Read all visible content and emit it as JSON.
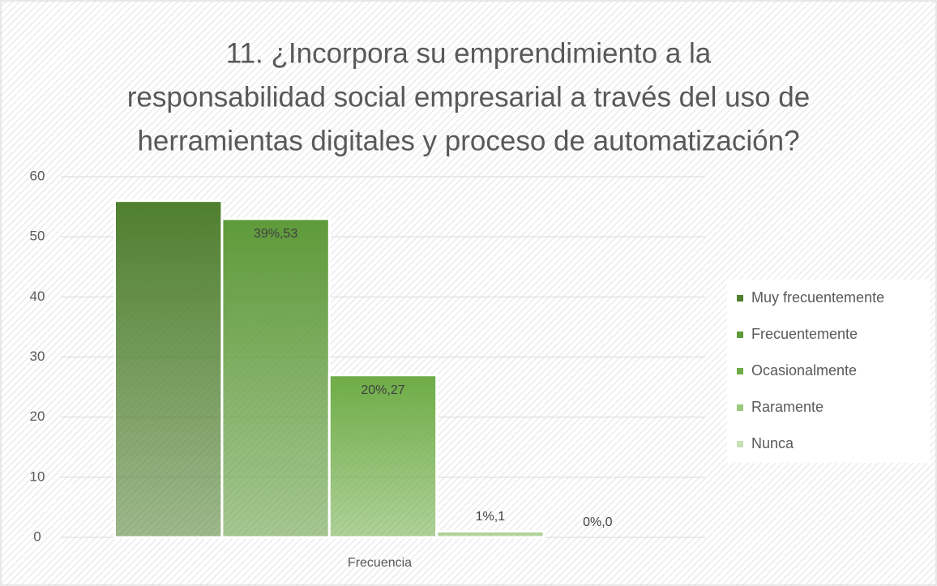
{
  "chart_data": {
    "type": "bar",
    "title": [
      "11. ¿Incorpora su emprendimiento a la",
      "responsabilidad social empresarial a través del uso de",
      "herramientas digitales y proceso de automatización?"
    ],
    "categories": [
      "Frecuencia"
    ],
    "series": [
      {
        "name": "Muy frecuentemente",
        "color": "#4f7f2f",
        "values": [
          56
        ]
      },
      {
        "name": "Frecuentemente",
        "color": "#5e9a3a",
        "values": [
          53
        ],
        "value_labels": [
          "39%,53"
        ]
      },
      {
        "name": "Ocasionalmente",
        "color": "#6eac46",
        "values": [
          27
        ],
        "value_labels": [
          "20%,27"
        ]
      },
      {
        "name": "Raramente",
        "color": "#9cc97e",
        "values": [
          1
        ],
        "value_labels": [
          "1%,1"
        ]
      },
      {
        "name": "Nunca",
        "color": "#c6e0b4",
        "values": [
          0
        ],
        "value_labels": [
          "0%,0"
        ]
      }
    ],
    "ylim": [
      0,
      60
    ],
    "yticks": [
      0,
      10,
      20,
      30,
      40,
      50,
      60
    ],
    "grid": true,
    "legend": "right"
  }
}
